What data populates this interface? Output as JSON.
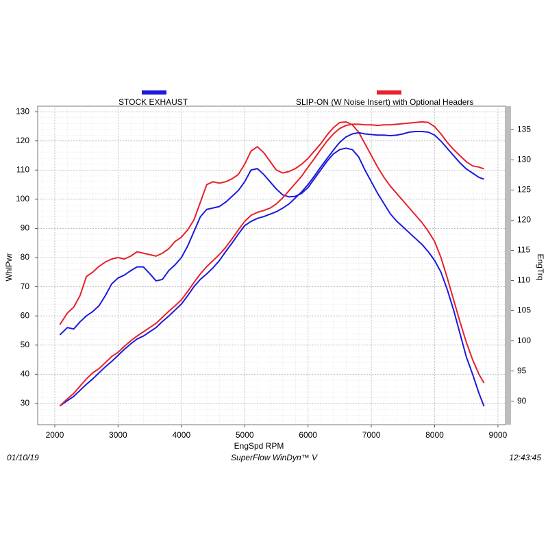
{
  "chart_data": {
    "type": "line",
    "xlabel": "EngSpd  RPM",
    "ylabel": "WhlPwr",
    "y2label": "EngTrq",
    "x": [
      2080,
      2200,
      2300,
      2400,
      2500,
      2600,
      2700,
      2800,
      2900,
      3000,
      3100,
      3200,
      3300,
      3400,
      3500,
      3600,
      3700,
      3800,
      3900,
      4000,
      4100,
      4200,
      4300,
      4400,
      4500,
      4600,
      4700,
      4800,
      4900,
      5000,
      5100,
      5200,
      5300,
      5400,
      5500,
      5600,
      5700,
      5800,
      5900,
      6000,
      6100,
      6200,
      6300,
      6400,
      6500,
      6600,
      6700,
      6800,
      6900,
      7000,
      7100,
      7200,
      7300,
      7400,
      7500,
      7600,
      7700,
      7800,
      7900,
      8000,
      8100,
      8200,
      8300,
      8400,
      8500,
      8600,
      8700,
      8780
    ],
    "series": [
      {
        "name": "STOCK EXHAUST",
        "color": "#1a1adc",
        "values": [
          53.5,
          56,
          55.5,
          58,
          60,
          61.5,
          63.5,
          67,
          71,
          73,
          74,
          75.5,
          76.8,
          76.8,
          74.5,
          72,
          72.5,
          75.5,
          77.5,
          80,
          84,
          89,
          94,
          96.5,
          97,
          97.5,
          99,
          101,
          103,
          106,
          110,
          110.5,
          108.5,
          106,
          103.5,
          101.5,
          100.8,
          101,
          102,
          104,
          107,
          110,
          113,
          115.5,
          117,
          117.5,
          117,
          114.5,
          110,
          106,
          102,
          98.5,
          95,
          92.5,
          90.5,
          88.5,
          86.5,
          84.5,
          82,
          79,
          75,
          69,
          62,
          54,
          46,
          40,
          33.5,
          29
        ]
      },
      {
        "name": "SLIP-ON (W Noise Insert) with Optional Headers",
        "color": "#e8202a",
        "values": [
          57,
          61,
          63,
          67,
          73.5,
          75,
          77,
          78.5,
          79.5,
          80,
          79.5,
          80.5,
          82,
          81.5,
          81,
          80.5,
          81.5,
          83,
          85.5,
          87,
          89.5,
          93,
          99,
          105,
          106,
          105.5,
          106,
          107,
          108.5,
          112,
          116.5,
          118,
          116,
          113,
          110,
          109,
          109.5,
          110.5,
          112,
          114,
          116.5,
          119,
          122,
          124.5,
          126.3,
          126.5,
          125.5,
          123,
          119,
          115,
          111,
          107.5,
          104.5,
          102,
          99.5,
          97,
          94.5,
          92,
          89,
          85.5,
          80,
          73,
          65.5,
          58,
          51,
          45,
          40,
          37
        ]
      },
      {
        "axis": "y2",
        "color": "#1a1adc",
        "values": [
          89.2,
          90.1,
          90.8,
          91.8,
          92.8,
          93.7,
          94.7,
          95.7,
          96.6,
          97.6,
          98.6,
          99.5,
          100.3,
          100.8,
          101.5,
          102.2,
          103.2,
          104.1,
          105.1,
          106.1,
          107.5,
          109,
          110.2,
          111.1,
          112.1,
          113.3,
          114.8,
          116.2,
          117.7,
          119.1,
          119.8,
          120.3,
          120.6,
          121.0,
          121.4,
          122.0,
          122.7,
          123.7,
          124.7,
          125.9,
          127.3,
          128.8,
          130.2,
          131.6,
          132.9,
          133.8,
          134.3,
          134.5,
          134.3,
          134.2,
          134.1,
          134.1,
          134.0,
          134.1,
          134.3,
          134.6,
          134.7,
          134.7,
          134.6,
          134.1,
          133.1,
          131.9,
          130.7,
          129.5,
          128.5,
          127.8,
          127.1,
          126.8
        ]
      },
      {
        "axis": "y2",
        "color": "#e8202a",
        "values": [
          89.2,
          90.4,
          91.3,
          92.5,
          93.7,
          94.7,
          95.4,
          96.4,
          97.4,
          98.1,
          99.1,
          100.0,
          100.8,
          101.5,
          102.2,
          102.9,
          103.9,
          104.9,
          105.8,
          106.8,
          108.2,
          109.7,
          111.1,
          112.3,
          113.3,
          114.3,
          115.5,
          116.9,
          118.4,
          119.8,
          120.8,
          121.3,
          121.6,
          122.0,
          122.7,
          123.7,
          124.9,
          126.1,
          127.3,
          128.8,
          130.2,
          131.7,
          133.1,
          134.3,
          135.2,
          135.7,
          135.9,
          135.9,
          135.8,
          135.8,
          135.7,
          135.8,
          135.8,
          135.9,
          136.0,
          136.1,
          136.2,
          136.3,
          136.2,
          135.5,
          134.3,
          132.9,
          131.7,
          130.7,
          129.7,
          129.0,
          128.8,
          128.5
        ]
      }
    ],
    "xlim": [
      1730,
      9120
    ],
    "xticks": [
      2000,
      3000,
      4000,
      5000,
      6000,
      7000,
      8000,
      9000
    ],
    "ylim": [
      22.7,
      131.9
    ],
    "yticks": [
      30,
      40,
      50,
      60,
      70,
      80,
      90,
      100,
      110,
      120,
      130
    ],
    "y2lim": [
      86.1,
      138.9
    ],
    "y2ticks": [
      90,
      95,
      100,
      105,
      110,
      115,
      120,
      125,
      130,
      135
    ],
    "grid": true,
    "footer": {
      "date": "01/10/19",
      "software": "SuperFlow WinDyn™ V",
      "time": "12:43:45"
    }
  }
}
